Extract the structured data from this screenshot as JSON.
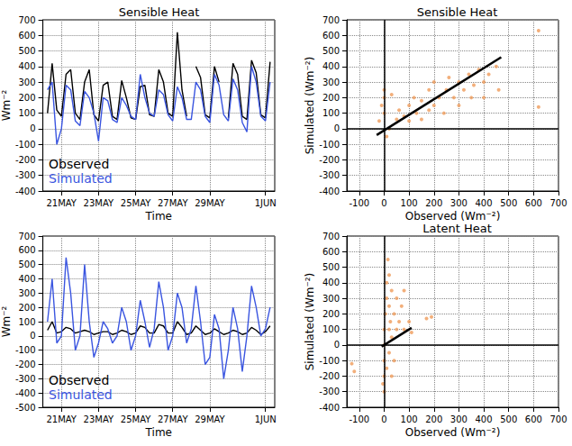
{
  "chart_data": [
    {
      "type": "line",
      "title": "Sensible Heat",
      "x_label": "Time",
      "y_label": "Wm⁻²",
      "x": [
        20.25,
        20.5,
        20.75,
        21,
        21.25,
        21.5,
        21.75,
        22,
        22.25,
        22.5,
        22.75,
        23,
        23.25,
        23.5,
        23.75,
        24,
        24.25,
        24.5,
        24.75,
        25,
        25.25,
        25.5,
        25.75,
        26,
        26.25,
        26.5,
        26.75,
        27,
        27.25,
        27.5,
        27.75,
        28,
        28.25,
        28.5,
        28.75,
        29,
        29.25,
        29.5,
        29.75,
        30,
        30.25,
        30.5,
        30.75,
        31,
        31.25,
        31.5,
        31.75,
        32,
        32.25
      ],
      "series": [
        {
          "name": "Observed",
          "color": "#000000",
          "values": [
            100,
            420,
            120,
            80,
            350,
            380,
            100,
            60,
            300,
            380,
            90,
            50,
            280,
            300,
            80,
            60,
            310,
            200,
            70,
            60,
            270,
            280,
            90,
            80,
            380,
            300,
            100,
            80,
            620,
            250,
            80,
            null,
            400,
            330,
            90,
            70,
            400,
            300,
            null,
            70,
            420,
            350,
            80,
            60,
            440,
            360,
            90,
            70,
            430
          ]
        },
        {
          "name": "Simulated",
          "color": "#3a55e0",
          "values": [
            250,
            300,
            -100,
            0,
            280,
            250,
            50,
            20,
            240,
            200,
            100,
            -80,
            200,
            180,
            60,
            40,
            200,
            150,
            80,
            60,
            350,
            200,
            100,
            80,
            250,
            220,
            90,
            50,
            270,
            200,
            60,
            60,
            300,
            250,
            80,
            40,
            350,
            280,
            90,
            50,
            320,
            250,
            40,
            -20,
            400,
            300,
            80,
            50,
            300
          ]
        }
      ],
      "xlim": [
        20,
        32.5
      ],
      "xticks": [
        {
          "value": 21,
          "label": "21MAY"
        },
        {
          "value": 23,
          "label": "23MAY"
        },
        {
          "value": 25,
          "label": "25MAY"
        },
        {
          "value": 27,
          "label": "27MAY"
        },
        {
          "value": 29,
          "label": "29MAY"
        },
        {
          "value": 32,
          "label": "1JUN"
        }
      ],
      "ylim": [
        -400,
        700
      ],
      "yticks": [
        -400,
        -300,
        -200,
        -100,
        0,
        100,
        200,
        300,
        400,
        500,
        600,
        700
      ],
      "grid": true,
      "legend": "lower left"
    },
    {
      "type": "scatter",
      "title": "Sensible Heat",
      "x_label": "Observed (Wm⁻²)",
      "y_label": "Simulated (Wm⁻²)",
      "series": [
        {
          "type": "scatter",
          "color": "#ef9b5a",
          "marker": "circle",
          "values": [
            [
              0,
              250
            ],
            [
              -10,
              150
            ],
            [
              0,
              100
            ],
            [
              10,
              -50
            ],
            [
              20,
              0
            ],
            [
              50,
              60
            ],
            [
              60,
              120
            ],
            [
              80,
              80
            ],
            [
              100,
              150
            ],
            [
              100,
              50
            ],
            [
              120,
              200
            ],
            [
              130,
              100
            ],
            [
              150,
              180
            ],
            [
              150,
              60
            ],
            [
              180,
              250
            ],
            [
              180,
              120
            ],
            [
              200,
              150
            ],
            [
              200,
              300
            ],
            [
              220,
              200
            ],
            [
              240,
              100
            ],
            [
              250,
              250
            ],
            [
              260,
              330
            ],
            [
              280,
              200
            ],
            [
              300,
              300
            ],
            [
              300,
              150
            ],
            [
              320,
              250
            ],
            [
              340,
              350
            ],
            [
              350,
              200
            ],
            [
              360,
              280
            ],
            [
              380,
              380
            ],
            [
              400,
              300
            ],
            [
              400,
              200
            ],
            [
              420,
              350
            ],
            [
              450,
              400
            ],
            [
              460,
              250
            ],
            [
              620,
              630
            ],
            [
              620,
              140
            ],
            [
              0,
              200
            ],
            [
              -20,
              50
            ],
            [
              30,
              220
            ]
          ]
        },
        {
          "type": "line",
          "color": "#000000",
          "line_style": "solid",
          "values": [
            [
              -30,
              -40
            ],
            [
              470,
              460
            ]
          ]
        }
      ],
      "xlim": [
        -150,
        700
      ],
      "xticks": [
        -100,
        0,
        100,
        200,
        300,
        400,
        500,
        600,
        700
      ],
      "ylim": [
        -400,
        700
      ],
      "yticks": [
        -400,
        -300,
        -200,
        -100,
        0,
        100,
        200,
        300,
        400,
        500,
        600,
        700
      ],
      "grid": true
    },
    {
      "type": "line",
      "x_label": "Time",
      "y_label": "Wm⁻²",
      "x": [
        20.25,
        20.5,
        20.75,
        21,
        21.25,
        21.5,
        21.75,
        22,
        22.25,
        22.5,
        22.75,
        23,
        23.25,
        23.5,
        23.75,
        24,
        24.25,
        24.5,
        24.75,
        25,
        25.25,
        25.5,
        25.75,
        26,
        26.25,
        26.5,
        26.75,
        27,
        27.25,
        27.5,
        27.75,
        28,
        28.25,
        28.5,
        28.75,
        29,
        29.25,
        29.5,
        29.75,
        30,
        30.25,
        30.5,
        30.75,
        31,
        31.25,
        31.5,
        31.75,
        32,
        32.25
      ],
      "series": [
        {
          "name": "Observed",
          "color": "#000000",
          "values": [
            40,
            100,
            20,
            30,
            60,
            50,
            20,
            30,
            40,
            30,
            10,
            20,
            30,
            30,
            10,
            20,
            40,
            30,
            10,
            20,
            70,
            60,
            20,
            20,
            80,
            70,
            20,
            20,
            100,
            60,
            10,
            20,
            70,
            40,
            10,
            20,
            50,
            30,
            10,
            20,
            40,
            30,
            10,
            20,
            60,
            40,
            10,
            30,
            70
          ]
        },
        {
          "name": "Simulated",
          "color": "#3a55e0",
          "values": [
            100,
            400,
            -50,
            0,
            550,
            300,
            -100,
            0,
            500,
            100,
            -150,
            -50,
            100,
            50,
            -50,
            0,
            200,
            100,
            -100,
            0,
            250,
            100,
            -80,
            50,
            380,
            200,
            -100,
            0,
            300,
            200,
            -50,
            50,
            350,
            100,
            -200,
            -150,
            150,
            50,
            -300,
            -100,
            200,
            50,
            -250,
            0,
            350,
            200,
            0,
            50,
            200
          ]
        }
      ],
      "xlim": [
        20,
        32.5
      ],
      "xticks": [
        {
          "value": 21,
          "label": "21MAY"
        },
        {
          "value": 23,
          "label": "23MAY"
        },
        {
          "value": 25,
          "label": "25MAY"
        },
        {
          "value": 27,
          "label": "27MAY"
        },
        {
          "value": 29,
          "label": "29MAY"
        },
        {
          "value": 32,
          "label": "1JUN"
        }
      ],
      "ylim": [
        -500,
        700
      ],
      "yticks": [
        -500,
        -400,
        -300,
        -200,
        -100,
        0,
        100,
        200,
        300,
        400,
        500,
        600,
        700
      ],
      "grid": true,
      "legend": "lower left"
    },
    {
      "type": "scatter",
      "title": "Latent Heat",
      "x_label": "Observed (Wm⁻²)",
      "y_label": "Simulated (Wm⁻²)",
      "series": [
        {
          "type": "scatter",
          "color": "#ef9b5a",
          "marker": "circle",
          "values": [
            [
              0,
              -300
            ],
            [
              0,
              -200
            ],
            [
              0,
              -100
            ],
            [
              0,
              0
            ],
            [
              0,
              100
            ],
            [
              5,
              200
            ],
            [
              10,
              300
            ],
            [
              10,
              400
            ],
            [
              15,
              550
            ],
            [
              20,
              450
            ],
            [
              20,
              250
            ],
            [
              20,
              100
            ],
            [
              20,
              -50
            ],
            [
              25,
              150
            ],
            [
              30,
              350
            ],
            [
              30,
              50
            ],
            [
              40,
              200
            ],
            [
              40,
              -100
            ],
            [
              50,
              100
            ],
            [
              50,
              300
            ],
            [
              60,
              150
            ],
            [
              70,
              250
            ],
            [
              80,
              100
            ],
            [
              80,
              350
            ],
            [
              100,
              150
            ],
            [
              110,
              80
            ],
            [
              170,
              170
            ],
            [
              190,
              180
            ],
            [
              -130,
              -120
            ],
            [
              -120,
              -170
            ],
            [
              -5,
              -250
            ],
            [
              10,
              -150
            ],
            [
              30,
              -200
            ]
          ]
        },
        {
          "type": "line",
          "color": "#000000",
          "line_style": "solid",
          "values": [
            [
              -10,
              -10
            ],
            [
              110,
              110
            ]
          ]
        }
      ],
      "xlim": [
        -150,
        700
      ],
      "xticks": [
        -100,
        0,
        100,
        200,
        300,
        400,
        500,
        600,
        700
      ],
      "ylim": [
        -400,
        700
      ],
      "yticks": [
        -400,
        -300,
        -200,
        -100,
        0,
        100,
        200,
        300,
        400,
        500,
        600,
        700
      ],
      "grid": true
    }
  ]
}
